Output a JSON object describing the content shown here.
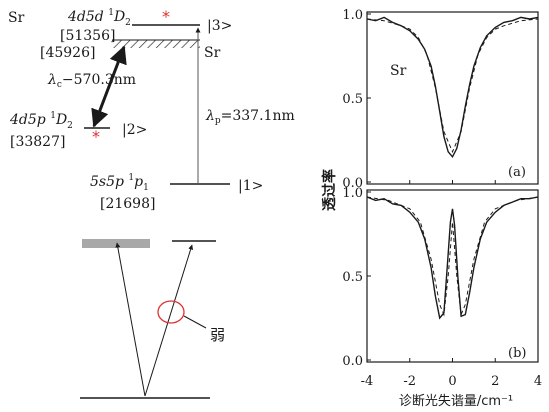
{
  "energy_diagram": {
    "element_label_left": "Sr",
    "element_label_right": "Sr",
    "level3": {
      "term_prefix": "4d5d ",
      "term_super": "1",
      "term_main": "D",
      "term_sub": "2",
      "energy": "[51356]",
      "ket": "|3>"
    },
    "continuum_energy": "[45926]",
    "level2": {
      "term_prefix": "4d5p ",
      "term_super": "1",
      "term_main": "D",
      "term_sub": "2",
      "energy": "[33827]",
      "ket": "|2>"
    },
    "level1": {
      "term_prefix": "5s5p ",
      "term_super": "1",
      "term_main": "p",
      "term_sub": "1",
      "energy": "[21698]",
      "ket": "|1>"
    },
    "coupling_laser": {
      "lambda": "λ",
      "sub": "c",
      "value": "−570.3nm"
    },
    "probe_laser": {
      "lambda": "λ",
      "sub": "p",
      "value": "=337.1nm"
    },
    "asterisk": "*",
    "accent_color": "#e03030"
  },
  "lambda_scheme": {
    "weak_label": "弱",
    "accent_color": "#e03030"
  },
  "chart_data": [
    {
      "type": "line",
      "panel_label": "(a)",
      "series_label": "Sr",
      "title": "",
      "xlabel": "诊断光失谐量/cm⁻¹",
      "ylabel": "透过率",
      "xlim": [
        -4,
        4
      ],
      "ylim": [
        0,
        1
      ],
      "yticks": [
        "1.0",
        "0.5",
        "0.0"
      ],
      "xticks": [
        "-4",
        "-2",
        "0",
        "2",
        "4"
      ],
      "series": [
        {
          "style": "solid",
          "x": [
            -4,
            -3.6,
            -3.2,
            -2.8,
            -2.4,
            -2.0,
            -1.6,
            -1.3,
            -1.0,
            -0.8,
            -0.6,
            -0.4,
            -0.2,
            0,
            0.2,
            0.4,
            0.6,
            0.8,
            1.0,
            1.3,
            1.6,
            2.0,
            2.4,
            2.8,
            3.2,
            3.6,
            4
          ],
          "values": [
            0.97,
            0.96,
            0.98,
            0.95,
            0.93,
            0.9,
            0.85,
            0.79,
            0.69,
            0.57,
            0.42,
            0.27,
            0.18,
            0.15,
            0.2,
            0.31,
            0.45,
            0.58,
            0.69,
            0.8,
            0.87,
            0.92,
            0.95,
            0.96,
            0.98,
            0.97,
            0.98
          ]
        },
        {
          "style": "dashed",
          "x": [
            -4,
            -3.2,
            -2.4,
            -2.0,
            -1.6,
            -1.2,
            -0.8,
            -0.4,
            0,
            0.4,
            0.8,
            1.2,
            1.6,
            2.0,
            2.4,
            3.2,
            4
          ],
          "values": [
            0.97,
            0.96,
            0.93,
            0.91,
            0.86,
            0.76,
            0.56,
            0.3,
            0.18,
            0.3,
            0.56,
            0.76,
            0.86,
            0.91,
            0.93,
            0.96,
            0.97
          ]
        }
      ]
    },
    {
      "type": "line",
      "panel_label": "(b)",
      "title": "",
      "xlabel": "诊断光失谐量/cm⁻¹",
      "ylabel": "透过率",
      "xlim": [
        -4,
        4
      ],
      "ylim": [
        0,
        1
      ],
      "yticks": [
        "1.0",
        "0.5",
        "0.0"
      ],
      "xticks": [
        "-4",
        "-2",
        "0",
        "2",
        "4"
      ],
      "series": [
        {
          "style": "solid",
          "x": [
            -4,
            -3.6,
            -3.2,
            -2.8,
            -2.4,
            -2.0,
            -1.6,
            -1.3,
            -1.0,
            -0.8,
            -0.6,
            -0.4,
            -0.25,
            -0.1,
            0,
            0.1,
            0.25,
            0.4,
            0.6,
            0.8,
            1.0,
            1.3,
            1.6,
            2.0,
            2.4,
            2.8,
            3.2,
            3.6,
            4
          ],
          "values": [
            0.97,
            0.95,
            0.96,
            0.93,
            0.92,
            0.88,
            0.82,
            0.72,
            0.55,
            0.38,
            0.25,
            0.28,
            0.55,
            0.82,
            0.9,
            0.8,
            0.5,
            0.26,
            0.27,
            0.4,
            0.55,
            0.72,
            0.82,
            0.88,
            0.92,
            0.94,
            0.96,
            0.96,
            0.97
          ]
        },
        {
          "style": "dashed",
          "x": [
            -4,
            -3,
            -2,
            -1.5,
            -1,
            -0.6,
            -0.4,
            -0.2,
            0,
            0.2,
            0.4,
            0.6,
            1,
            1.5,
            2,
            3,
            4
          ],
          "values": [
            0.97,
            0.95,
            0.9,
            0.82,
            0.6,
            0.33,
            0.27,
            0.5,
            0.82,
            0.5,
            0.27,
            0.33,
            0.6,
            0.82,
            0.9,
            0.95,
            0.97
          ]
        }
      ]
    }
  ]
}
